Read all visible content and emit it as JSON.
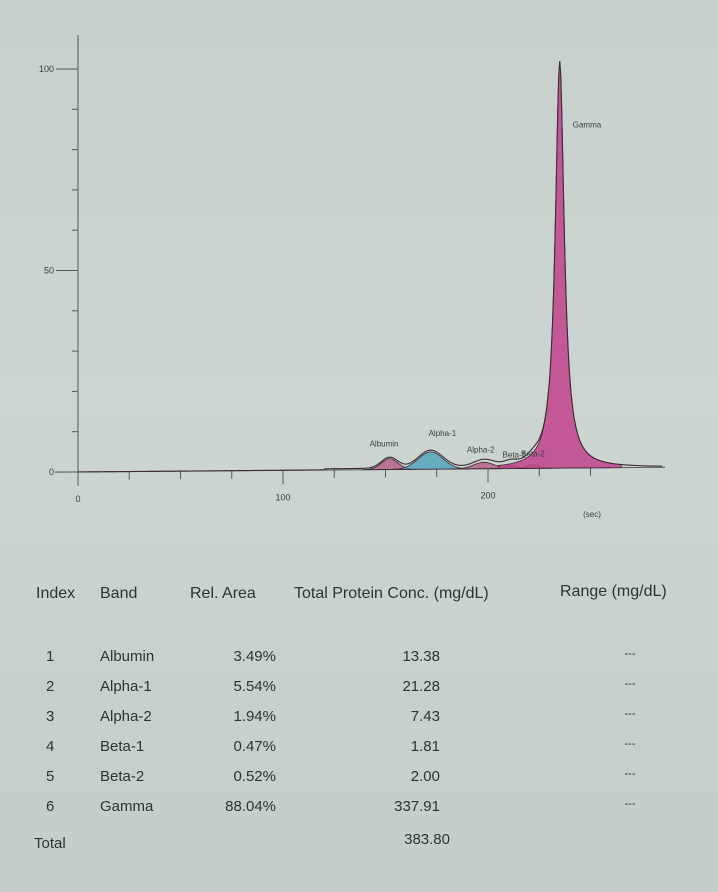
{
  "chart_data": {
    "type": "area",
    "xlabel": "",
    "ylabel": "",
    "x_unit_label": "(sec)",
    "xlim": [
      0,
      290
    ],
    "ylim": [
      0,
      100
    ],
    "x_ticks": [
      0,
      100,
      200
    ],
    "y_ticks": [
      0,
      50,
      100
    ],
    "series": [
      {
        "name": "Albumin",
        "center": 152,
        "peak": 2.7,
        "width": 4,
        "color": "#b04a7a"
      },
      {
        "name": "Alpha-1",
        "center": 172,
        "peak": 4.3,
        "width": 6,
        "color": "#3a9bb8"
      },
      {
        "name": "Alpha-2",
        "center": 198,
        "peak": 1.6,
        "width": 5,
        "color": "#b04a7a"
      },
      {
        "name": "Beta-1",
        "center": 211,
        "peak": 0.8,
        "width": 3,
        "color": "#b04a7a"
      },
      {
        "name": "Beta-2",
        "center": 222,
        "peak": 0.9,
        "width": 3,
        "color": "#b04a7a"
      },
      {
        "name": "Gamma",
        "center": 235,
        "peak": 101,
        "width": 3,
        "color": "#c2428c"
      }
    ],
    "peak_labels": [
      "Albumin",
      "Alpha-1",
      "Alpha-2",
      "Beta-1",
      "Beta-2",
      "Gamma"
    ]
  },
  "table": {
    "headers": [
      "Index",
      "Band",
      "Rel. Area",
      "Total Protein Conc. (mg/dL)",
      "Range (mg/dL)"
    ],
    "rows": [
      {
        "index": "1",
        "band": "Albumin",
        "rel_area": "3.49%",
        "conc": "13.38",
        "range": "---"
      },
      {
        "index": "2",
        "band": "Alpha-1",
        "rel_area": "5.54%",
        "conc": "21.28",
        "range": "---"
      },
      {
        "index": "3",
        "band": "Alpha-2",
        "rel_area": "1.94%",
        "conc": "7.43",
        "range": "---"
      },
      {
        "index": "4",
        "band": "Beta-1",
        "rel_area": "0.47%",
        "conc": "1.81",
        "range": "---"
      },
      {
        "index": "5",
        "band": "Beta-2",
        "rel_area": "0.52%",
        "conc": "2.00",
        "range": "---"
      },
      {
        "index": "6",
        "band": "Gamma",
        "rel_area": "88.04%",
        "conc": "337.91",
        "range": "---"
      }
    ],
    "total_label": "Total",
    "total_conc": "383.80"
  }
}
